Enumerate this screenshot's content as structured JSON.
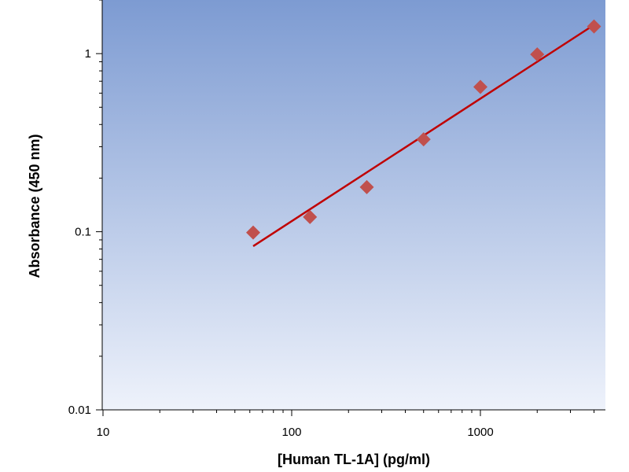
{
  "chart_data": {
    "type": "scatter",
    "title": "",
    "xlabel": "[Human TL-1A] (pg/ml)",
    "ylabel": "Absorbance (450 nm)",
    "x_scale": "log",
    "y_scale": "log",
    "xlim": [
      10,
      4000
    ],
    "ylim": [
      0.01,
      2
    ],
    "x_ticks": [
      {
        "value": 10,
        "label": "10"
      },
      {
        "value": 100,
        "label": "100"
      },
      {
        "value": 1000,
        "label": "1000"
      }
    ],
    "y_ticks": [
      {
        "value": 0.01,
        "label": "0.01"
      },
      {
        "value": 0.1,
        "label": "0.1"
      },
      {
        "value": 1,
        "label": "1"
      }
    ],
    "grid": false,
    "legend": "none",
    "series": [
      {
        "type": "scatter",
        "marker": "diamond",
        "color": "#c0504d",
        "points": [
          {
            "x": 62.5,
            "y": 0.099
          },
          {
            "x": 125,
            "y": 0.121
          },
          {
            "x": 250,
            "y": 0.178
          },
          {
            "x": 500,
            "y": 0.33
          },
          {
            "x": 1000,
            "y": 0.65
          },
          {
            "x": 2000,
            "y": 0.99
          },
          {
            "x": 4000,
            "y": 1.42
          }
        ]
      },
      {
        "type": "line",
        "color": "#c00000",
        "points": [
          {
            "x": 62.5,
            "y": 0.083
          },
          {
            "x": 4000,
            "y": 1.45
          }
        ]
      }
    ],
    "plot_background": {
      "top": "#7d9bd2",
      "bottom": "#eef2fb"
    }
  }
}
